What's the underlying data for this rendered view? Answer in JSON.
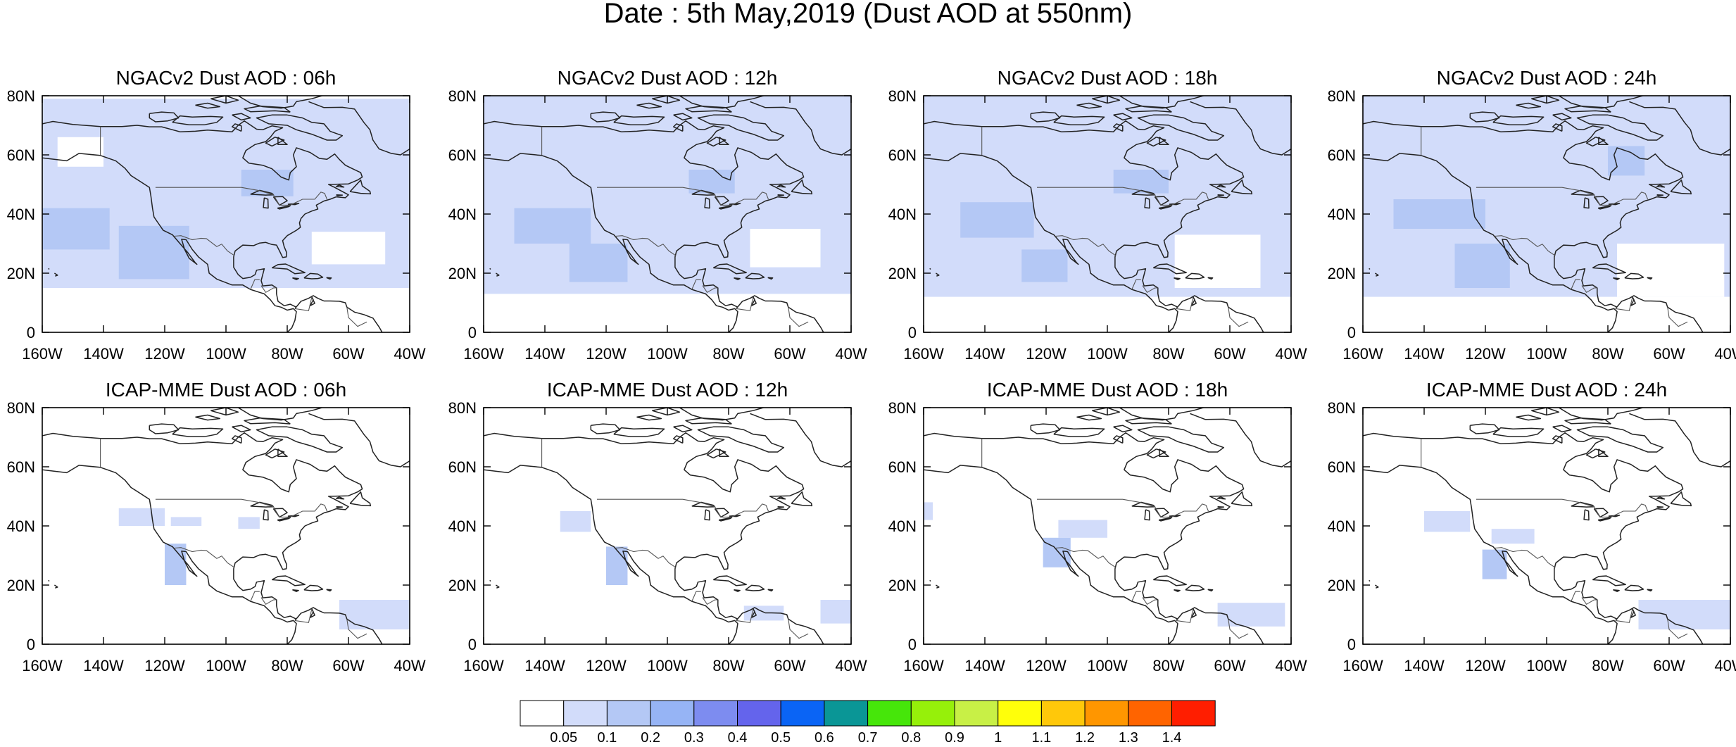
{
  "figure": {
    "title": "Date : 5th May,2019 (Dust AOD at 550nm)"
  },
  "axes": {
    "lat_ticks": [
      0,
      20,
      40,
      60,
      80
    ],
    "lat_labels": [
      "0",
      "20N",
      "40N",
      "60N",
      "80N"
    ],
    "lon_ticks": [
      -160,
      -140,
      -120,
      -100,
      -80,
      -60,
      -40
    ],
    "lon_labels": [
      "160W",
      "140W",
      "120W",
      "100W",
      "80W",
      "60W",
      "40W"
    ],
    "lon_range": [
      -160,
      -40
    ],
    "lat_range": [
      0,
      80
    ]
  },
  "panels": [
    {
      "title": "NGACv2 Dust AOD : 06h",
      "model": "NGACv2",
      "lead": "06h"
    },
    {
      "title": "NGACv2 Dust AOD : 12h",
      "model": "NGACv2",
      "lead": "12h"
    },
    {
      "title": "NGACv2 Dust AOD : 18h",
      "model": "NGACv2",
      "lead": "18h"
    },
    {
      "title": "NGACv2 Dust AOD : 24h",
      "model": "NGACv2",
      "lead": "24h"
    },
    {
      "title": "ICAP-MME Dust AOD : 06h",
      "model": "ICAP-MME",
      "lead": "06h"
    },
    {
      "title": "ICAP-MME Dust AOD : 12h",
      "model": "ICAP-MME",
      "lead": "12h"
    },
    {
      "title": "ICAP-MME Dust AOD : 18h",
      "model": "ICAP-MME",
      "lead": "18h"
    },
    {
      "title": "ICAP-MME Dust AOD : 24h",
      "model": "ICAP-MME",
      "lead": "24h"
    }
  ],
  "colorbar": {
    "labels": [
      "0.05",
      "0.1",
      "0.2",
      "0.3",
      "0.4",
      "0.5",
      "0.6",
      "0.7",
      "0.8",
      "0.9",
      "1",
      "1.1",
      "1.2",
      "1.3",
      "1.4"
    ],
    "colors": [
      "#ffffff",
      "#d2dcfa",
      "#b4c8f5",
      "#96b4f5",
      "#7d8cf0",
      "#6464ec",
      "#0a64f5",
      "#0a9696",
      "#46e60a",
      "#96f00a",
      "#c8f046",
      "#ffff0a",
      "#ffc80a",
      "#ff9600",
      "#ff6400",
      "#ff1e00"
    ]
  },
  "map_data": {
    "ngac_fields": [
      [
        {
          "lon": [
            -160,
            -40
          ],
          "lat": [
            15,
            79
          ],
          "v": 0.07
        },
        {
          "lon": [
            -135,
            -112
          ],
          "lat": [
            18,
            36
          ],
          "v": 0.12
        },
        {
          "lon": [
            -95,
            -78
          ],
          "lat": [
            46,
            55
          ],
          "v": 0.12
        },
        {
          "lon": [
            -160,
            -138
          ],
          "lat": [
            28,
            42
          ],
          "v": 0.11
        },
        {
          "lon": [
            -72,
            -48
          ],
          "lat": [
            23,
            34
          ],
          "v": 0.03
        },
        {
          "lon": [
            -155,
            -140
          ],
          "lat": [
            56,
            66
          ],
          "v": 0.03
        }
      ],
      [
        {
          "lon": [
            -160,
            -40
          ],
          "lat": [
            13,
            80
          ],
          "v": 0.08
        },
        {
          "lon": [
            -132,
            -113
          ],
          "lat": [
            17,
            30
          ],
          "v": 0.13
        },
        {
          "lon": [
            -93,
            -78
          ],
          "lat": [
            47,
            55
          ],
          "v": 0.12
        },
        {
          "lon": [
            -150,
            -125
          ],
          "lat": [
            30,
            42
          ],
          "v": 0.11
        },
        {
          "lon": [
            -73,
            -50
          ],
          "lat": [
            22,
            35
          ],
          "v": 0.03
        }
      ],
      [
        {
          "lon": [
            -160,
            -40
          ],
          "lat": [
            12,
            80
          ],
          "v": 0.08
        },
        {
          "lon": [
            -128,
            -113
          ],
          "lat": [
            17,
            28
          ],
          "v": 0.13
        },
        {
          "lon": [
            -98,
            -80
          ],
          "lat": [
            47,
            55
          ],
          "v": 0.12
        },
        {
          "lon": [
            -148,
            -124
          ],
          "lat": [
            32,
            44
          ],
          "v": 0.11
        },
        {
          "lon": [
            -78,
            -50
          ],
          "lat": [
            15,
            33
          ],
          "v": 0.03
        }
      ],
      [
        {
          "lon": [
            -160,
            -40
          ],
          "lat": [
            12,
            80
          ],
          "v": 0.08
        },
        {
          "lon": [
            -130,
            -112
          ],
          "lat": [
            15,
            30
          ],
          "v": 0.13
        },
        {
          "lon": [
            -80,
            -68
          ],
          "lat": [
            53,
            63
          ],
          "v": 0.12
        },
        {
          "lon": [
            -150,
            -120
          ],
          "lat": [
            35,
            45
          ],
          "v": 0.11
        },
        {
          "lon": [
            -77,
            -42
          ],
          "lat": [
            12,
            30
          ],
          "v": 0.03
        }
      ]
    ],
    "icap_fields": [
      [
        {
          "lon": [
            -135,
            -120
          ],
          "lat": [
            40,
            46
          ],
          "v": 0.07
        },
        {
          "lon": [
            -118,
            -108
          ],
          "lat": [
            40,
            43
          ],
          "v": 0.07
        },
        {
          "lon": [
            -96,
            -89
          ],
          "lat": [
            39,
            43
          ],
          "v": 0.07
        },
        {
          "lon": [
            -120,
            -113
          ],
          "lat": [
            20,
            34
          ],
          "v": 0.12
        },
        {
          "lon": [
            -63,
            -40
          ],
          "lat": [
            5,
            15
          ],
          "v": 0.07
        }
      ],
      [
        {
          "lon": [
            -135,
            -125
          ],
          "lat": [
            38,
            45
          ],
          "v": 0.07
        },
        {
          "lon": [
            -120,
            -113
          ],
          "lat": [
            20,
            33
          ],
          "v": 0.12
        },
        {
          "lon": [
            -75,
            -62
          ],
          "lat": [
            8,
            13
          ],
          "v": 0.07
        },
        {
          "lon": [
            -50,
            -40
          ],
          "lat": [
            7,
            15
          ],
          "v": 0.07
        }
      ],
      [
        {
          "lon": [
            -116,
            -100
          ],
          "lat": [
            36,
            42
          ],
          "v": 0.07
        },
        {
          "lon": [
            -121,
            -112
          ],
          "lat": [
            26,
            36
          ],
          "v": 0.12
        },
        {
          "lon": [
            -64,
            -42
          ],
          "lat": [
            6,
            14
          ],
          "v": 0.07
        },
        {
          "lon": [
            -160,
            -157
          ],
          "lat": [
            42,
            48
          ],
          "v": 0.07
        }
      ],
      [
        {
          "lon": [
            -140,
            -125
          ],
          "lat": [
            38,
            45
          ],
          "v": 0.07
        },
        {
          "lon": [
            -118,
            -104
          ],
          "lat": [
            34,
            39
          ],
          "v": 0.07
        },
        {
          "lon": [
            -121,
            -113
          ],
          "lat": [
            22,
            32
          ],
          "v": 0.12
        },
        {
          "lon": [
            -70,
            -40
          ],
          "lat": [
            5,
            15
          ],
          "v": 0.07
        }
      ]
    ]
  }
}
